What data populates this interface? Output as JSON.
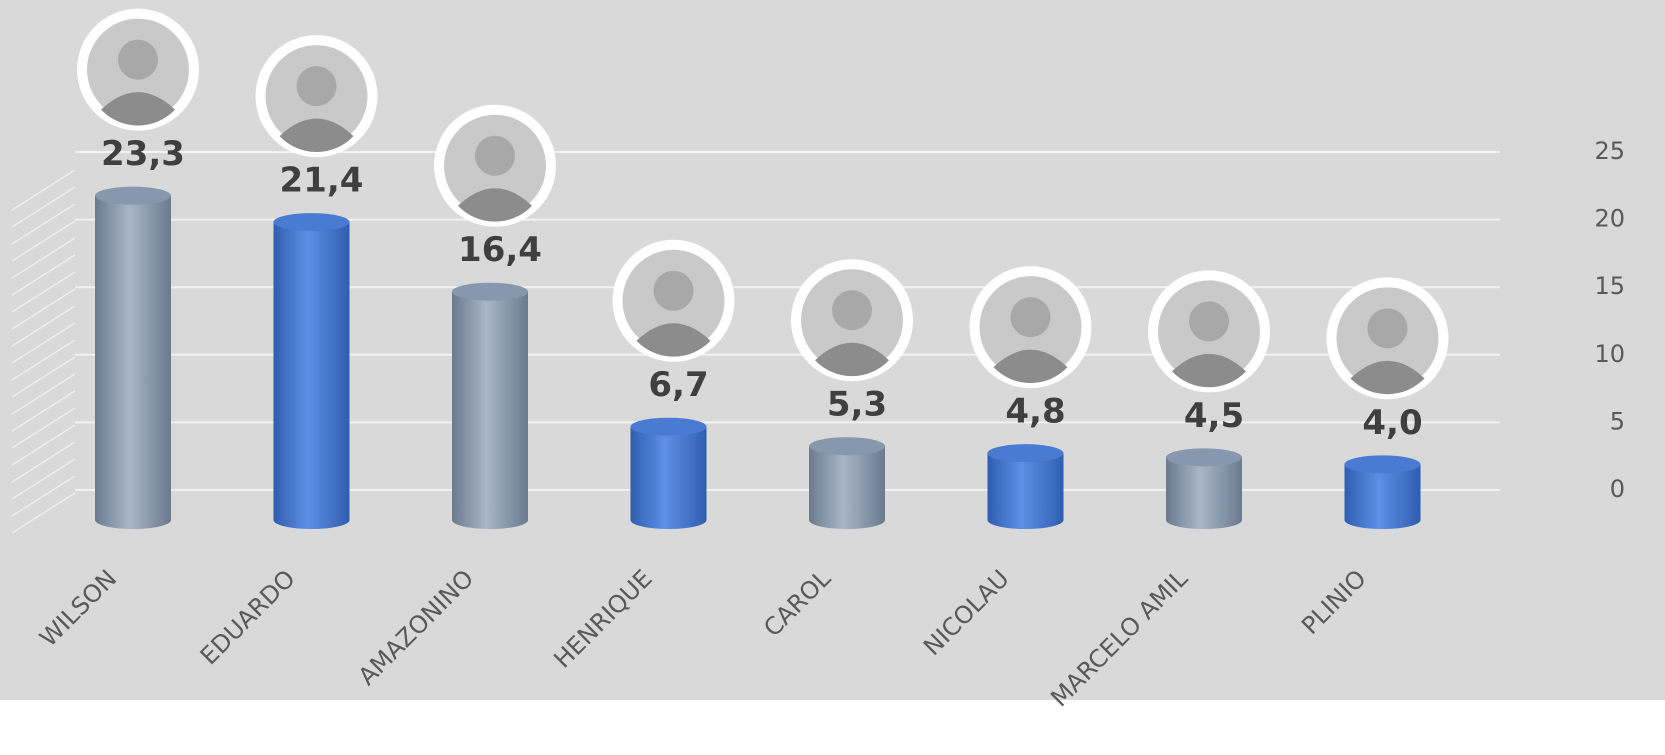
{
  "chart_data": {
    "type": "bar",
    "categories": [
      "WILSON",
      "EDUARDO",
      "AMAZONINO",
      "HENRIQUE",
      "CAROL",
      "NICOLAU",
      "MARCELO AMIL",
      "PLINIO"
    ],
    "values": [
      23.3,
      21.4,
      16.4,
      6.7,
      5.3,
      4.8,
      4.5,
      4.0
    ],
    "value_labels": [
      "23,3",
      "21,4",
      "16,4",
      "6,7",
      "5,3",
      "4,8",
      "4,5",
      "4,0"
    ],
    "colors": [
      "#8797ad",
      "#4a7bd2",
      "#8797ad",
      "#4a7bd2",
      "#8797ad",
      "#4a7bd2",
      "#8797ad",
      "#4a7bd2"
    ],
    "ylim": [
      0,
      25
    ],
    "yticks": [
      0,
      5,
      10,
      15,
      20,
      25
    ],
    "grid": true
  }
}
